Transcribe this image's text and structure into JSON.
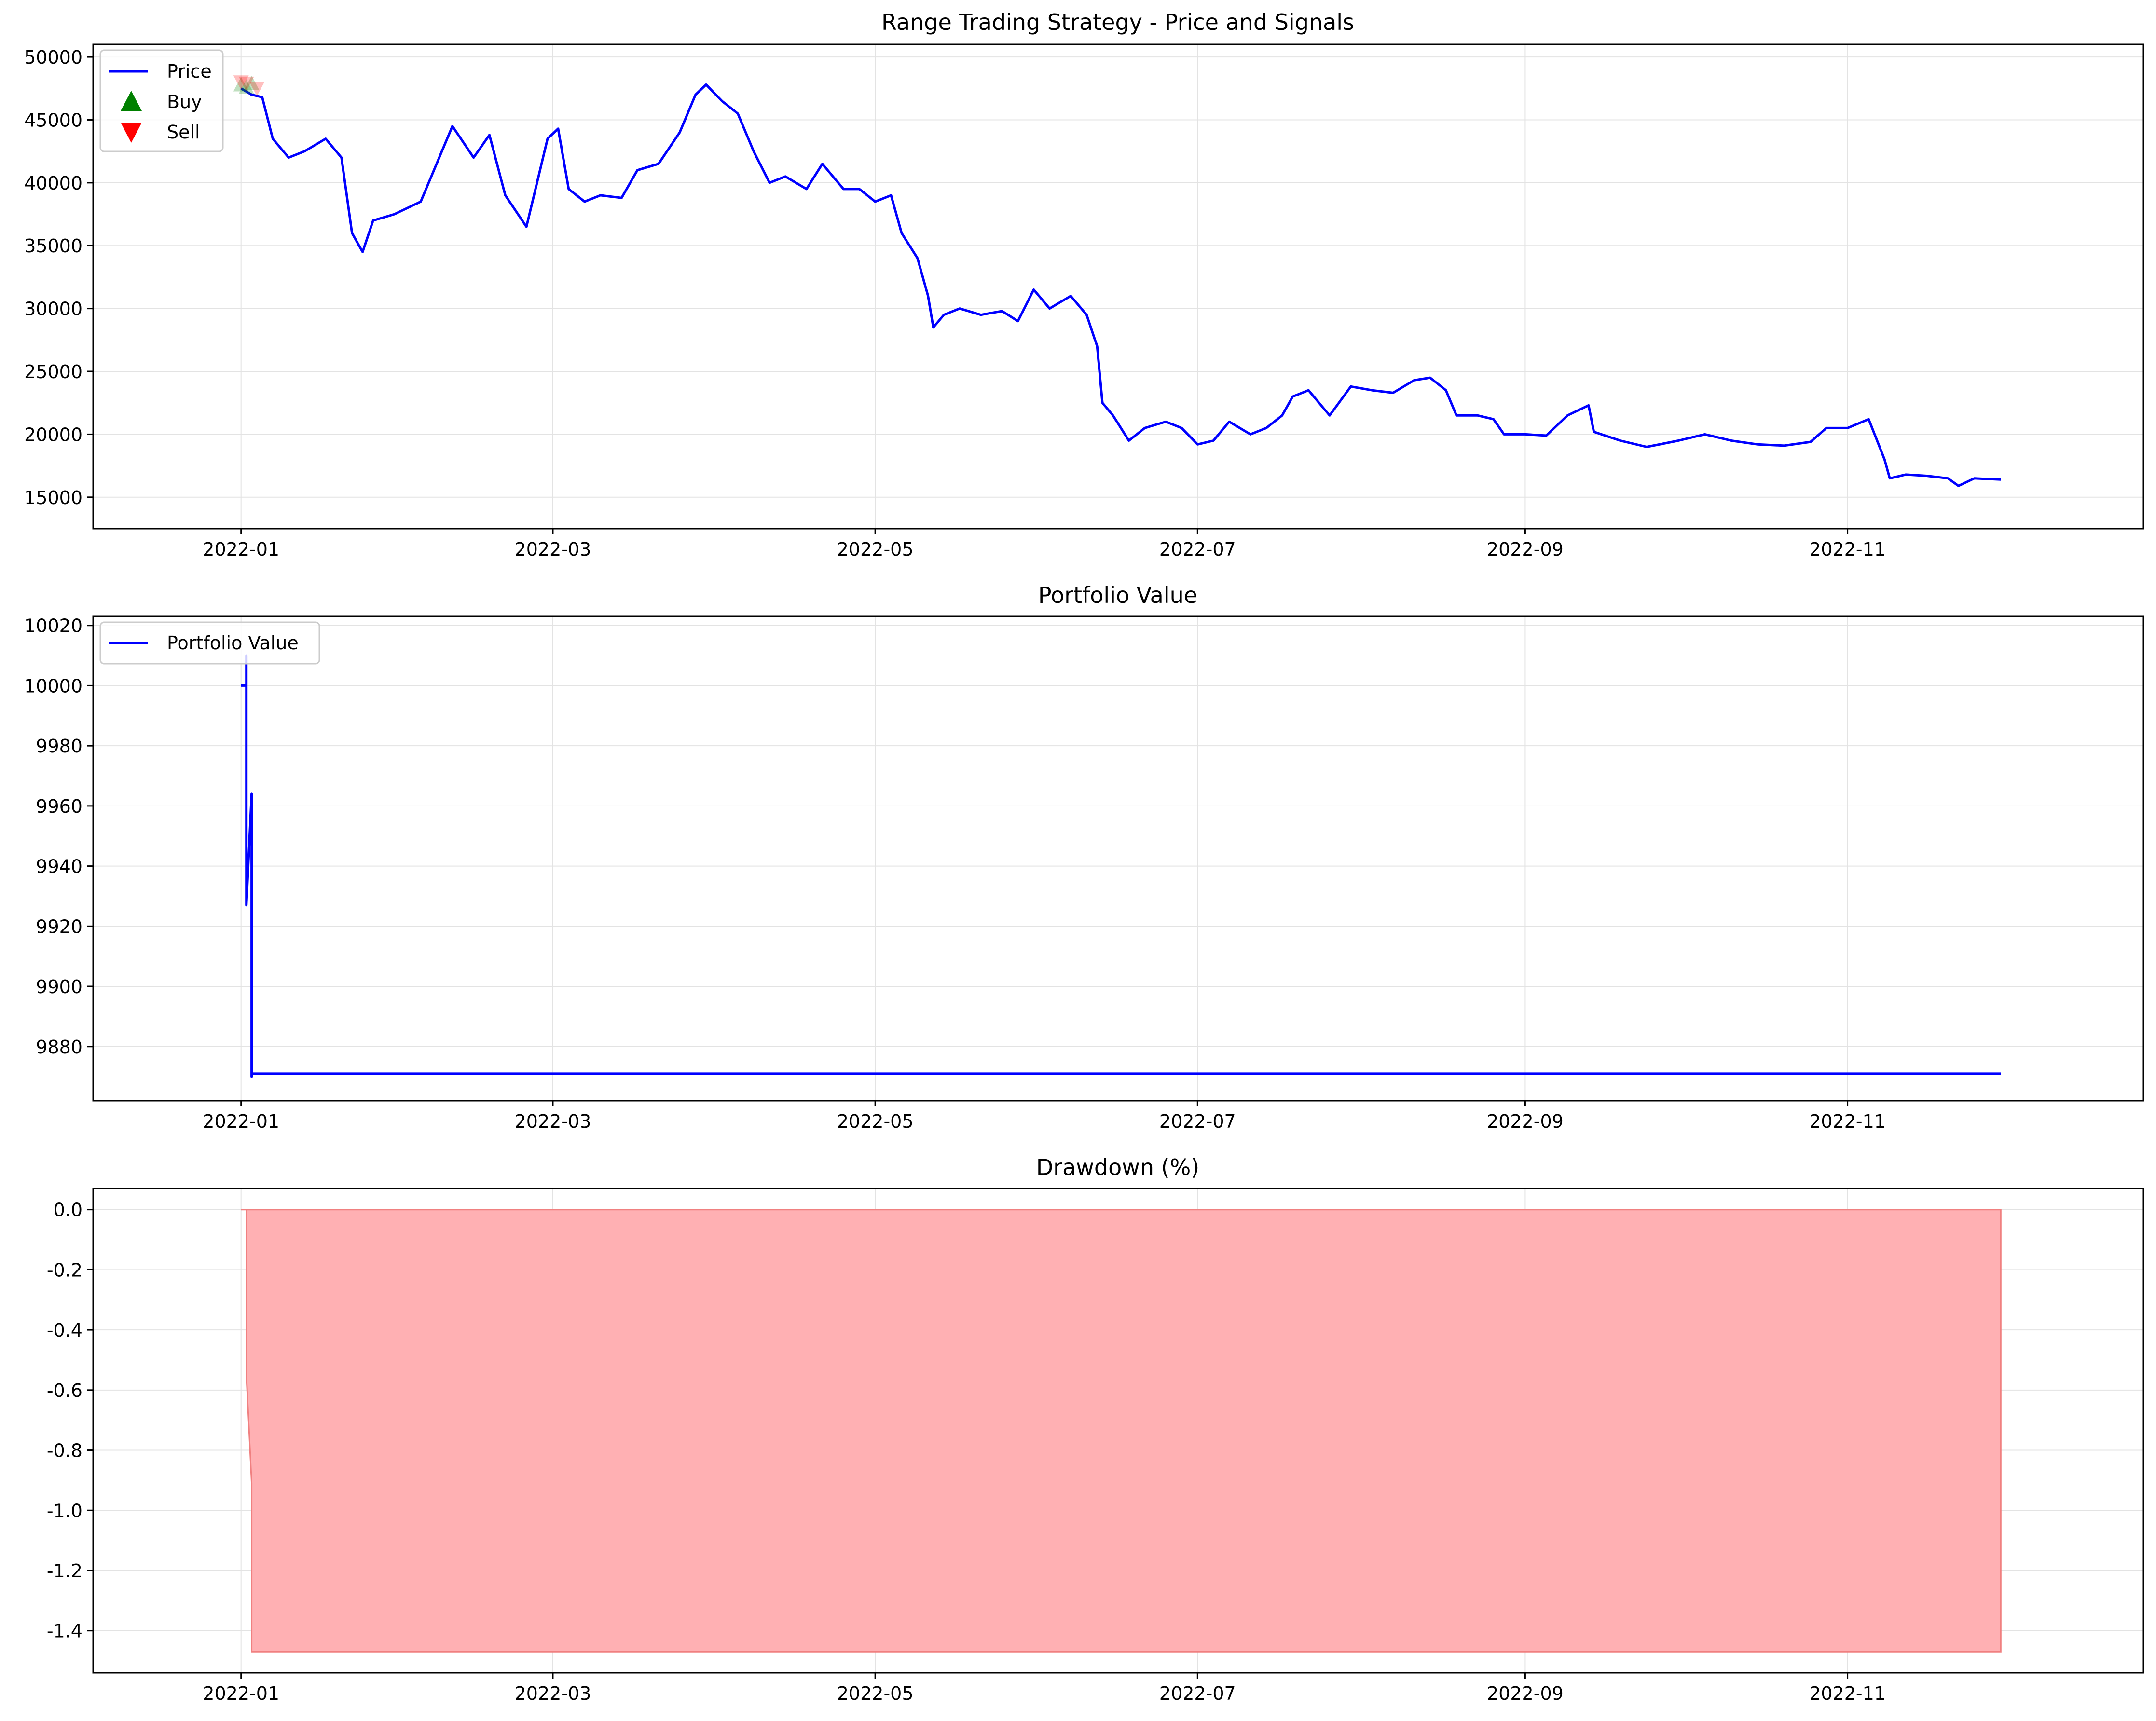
{
  "chart_data": [
    {
      "type": "line",
      "title": "Range Trading Strategy - Price and Signals",
      "xlabel": "",
      "ylabel": "",
      "x_tick_labels": [
        "2022-01",
        "2022-03",
        "2022-05",
        "2022-07",
        "2022-09",
        "2022-11"
      ],
      "y_tick_labels": [
        "15000",
        "20000",
        "25000",
        "30000",
        "35000",
        "40000",
        "45000",
        "50000"
      ],
      "ylim": [
        12500,
        51000
      ],
      "grid": true,
      "legend_position": "upper left",
      "legend": [
        "Price",
        "Buy",
        "Sell"
      ],
      "colors": {
        "price": "#0000ff",
        "buy": "#008000",
        "sell": "#ff0000"
      },
      "series": [
        {
          "name": "Price",
          "points": [
            [
              "2022-01-01",
              47500
            ],
            [
              "2022-01-03",
              47000
            ],
            [
              "2022-01-05",
              46800
            ],
            [
              "2022-01-07",
              43500
            ],
            [
              "2022-01-10",
              42000
            ],
            [
              "2022-01-13",
              42500
            ],
            [
              "2022-01-17",
              43500
            ],
            [
              "2022-01-20",
              42000
            ],
            [
              "2022-01-22",
              36000
            ],
            [
              "2022-01-24",
              34500
            ],
            [
              "2022-01-26",
              37000
            ],
            [
              "2022-01-30",
              37500
            ],
            [
              "2022-02-04",
              38500
            ],
            [
              "2022-02-07",
              41500
            ],
            [
              "2022-02-10",
              44500
            ],
            [
              "2022-02-14",
              42000
            ],
            [
              "2022-02-17",
              43800
            ],
            [
              "2022-02-20",
              39000
            ],
            [
              "2022-02-24",
              36500
            ],
            [
              "2022-02-28",
              43500
            ],
            [
              "2022-03-02",
              44300
            ],
            [
              "2022-03-04",
              39500
            ],
            [
              "2022-03-07",
              38500
            ],
            [
              "2022-03-10",
              39000
            ],
            [
              "2022-03-14",
              38800
            ],
            [
              "2022-03-17",
              41000
            ],
            [
              "2022-03-21",
              41500
            ],
            [
              "2022-03-25",
              44000
            ],
            [
              "2022-03-28",
              47000
            ],
            [
              "2022-03-30",
              47800
            ],
            [
              "2022-04-02",
              46500
            ],
            [
              "2022-04-05",
              45500
            ],
            [
              "2022-04-08",
              42500
            ],
            [
              "2022-04-11",
              40000
            ],
            [
              "2022-04-14",
              40500
            ],
            [
              "2022-04-18",
              39500
            ],
            [
              "2022-04-21",
              41500
            ],
            [
              "2022-04-25",
              39500
            ],
            [
              "2022-04-28",
              39500
            ],
            [
              "2022-05-01",
              38500
            ],
            [
              "2022-05-04",
              39000
            ],
            [
              "2022-05-06",
              36000
            ],
            [
              "2022-05-09",
              34000
            ],
            [
              "2022-05-11",
              31000
            ],
            [
              "2022-05-12",
              28500
            ],
            [
              "2022-05-14",
              29500
            ],
            [
              "2022-05-17",
              30000
            ],
            [
              "2022-05-21",
              29500
            ],
            [
              "2022-05-25",
              29800
            ],
            [
              "2022-05-28",
              29000
            ],
            [
              "2022-05-31",
              31500
            ],
            [
              "2022-06-03",
              30000
            ],
            [
              "2022-06-07",
              31000
            ],
            [
              "2022-06-10",
              29500
            ],
            [
              "2022-06-12",
              27000
            ],
            [
              "2022-06-13",
              22500
            ],
            [
              "2022-06-15",
              21500
            ],
            [
              "2022-06-18",
              19500
            ],
            [
              "2022-06-21",
              20500
            ],
            [
              "2022-06-25",
              21000
            ],
            [
              "2022-06-28",
              20500
            ],
            [
              "2022-07-01",
              19200
            ],
            [
              "2022-07-04",
              19500
            ],
            [
              "2022-07-07",
              21000
            ],
            [
              "2022-07-11",
              20000
            ],
            [
              "2022-07-14",
              20500
            ],
            [
              "2022-07-17",
              21500
            ],
            [
              "2022-07-19",
              23000
            ],
            [
              "2022-07-22",
              23500
            ],
            [
              "2022-07-26",
              21500
            ],
            [
              "2022-07-30",
              23800
            ],
            [
              "2022-08-03",
              23500
            ],
            [
              "2022-08-07",
              23300
            ],
            [
              "2022-08-11",
              24300
            ],
            [
              "2022-08-14",
              24500
            ],
            [
              "2022-08-17",
              23500
            ],
            [
              "2022-08-19",
              21500
            ],
            [
              "2022-08-23",
              21500
            ],
            [
              "2022-08-26",
              21200
            ],
            [
              "2022-08-28",
              20000
            ],
            [
              "2022-09-01",
              20000
            ],
            [
              "2022-09-05",
              19900
            ],
            [
              "2022-09-09",
              21500
            ],
            [
              "2022-09-13",
              22300
            ],
            [
              "2022-09-14",
              20200
            ],
            [
              "2022-09-19",
              19500
            ],
            [
              "2022-09-24",
              19000
            ],
            [
              "2022-09-30",
              19500
            ],
            [
              "2022-10-05",
              20000
            ],
            [
              "2022-10-10",
              19500
            ],
            [
              "2022-10-15",
              19200
            ],
            [
              "2022-10-20",
              19100
            ],
            [
              "2022-10-25",
              19400
            ],
            [
              "2022-10-28",
              20500
            ],
            [
              "2022-11-01",
              20500
            ],
            [
              "2022-11-05",
              21200
            ],
            [
              "2022-11-08",
              18000
            ],
            [
              "2022-11-09",
              16500
            ],
            [
              "2022-11-12",
              16800
            ],
            [
              "2022-11-16",
              16700
            ],
            [
              "2022-11-20",
              16500
            ],
            [
              "2022-11-22",
              15900
            ],
            [
              "2022-11-25",
              16500
            ],
            [
              "2022-11-30",
              16400
            ]
          ]
        },
        {
          "name": "Buy",
          "marker": "triangle-up",
          "points": [
            [
              "2022-01-01",
              47800
            ],
            [
              "2022-01-02",
              47600
            ],
            [
              "2022-01-03",
              47900
            ]
          ]
        },
        {
          "name": "Sell",
          "marker": "triangle-down",
          "points": [
            [
              "2022-01-01",
              48000
            ],
            [
              "2022-01-02",
              47900
            ],
            [
              "2022-01-04",
              47500
            ]
          ]
        }
      ]
    },
    {
      "type": "line",
      "title": "Portfolio Value",
      "xlabel": "",
      "ylabel": "",
      "x_tick_labels": [
        "2022-01",
        "2022-03",
        "2022-05",
        "2022-07",
        "2022-09",
        "2022-11"
      ],
      "y_tick_labels": [
        "9880",
        "9900",
        "9920",
        "9940",
        "9960",
        "9980",
        "10000",
        "10020"
      ],
      "ylim": [
        9862,
        10023
      ],
      "grid": true,
      "legend_position": "upper left",
      "legend": [
        "Portfolio Value"
      ],
      "colors": {
        "line": "#0000ff"
      },
      "series": [
        {
          "name": "Portfolio Value",
          "points": [
            [
              "2022-01-01",
              10000
            ],
            [
              "2022-01-01",
              10000
            ],
            [
              "2022-01-02",
              10000
            ],
            [
              "2022-01-02",
              9990
            ],
            [
              "2022-01-02",
              10010
            ],
            [
              "2022-01-02",
              9955
            ],
            [
              "2022-01-02",
              9927
            ],
            [
              "2022-01-03",
              9964
            ],
            [
              "2022-01-03",
              9925
            ],
            [
              "2022-01-03",
              9870
            ],
            [
              "2022-01-03",
              9871
            ],
            [
              "2022-11-30",
              9871
            ]
          ]
        }
      ]
    },
    {
      "type": "area",
      "title": "Drawdown (%)",
      "xlabel": "",
      "ylabel": "",
      "x_tick_labels": [
        "2022-01",
        "2022-03",
        "2022-05",
        "2022-07",
        "2022-09",
        "2022-11"
      ],
      "y_tick_labels": [
        "-1.4",
        "-1.2",
        "-1.0",
        "-0.8",
        "-0.6",
        "-0.4",
        "-0.2",
        "0.0"
      ],
      "ylim": [
        -1.54,
        0.07
      ],
      "grid": true,
      "colors": {
        "fill": "#ffb0b3",
        "edge": "#f08080"
      },
      "series": [
        {
          "name": "Drawdown",
          "points": [
            [
              "2022-01-01",
              0.0
            ],
            [
              "2022-01-02",
              0.0
            ],
            [
              "2022-01-02",
              -0.55
            ],
            [
              "2022-01-03",
              -0.91
            ],
            [
              "2022-01-03",
              -1.47
            ],
            [
              "2022-11-30",
              -1.47
            ]
          ]
        }
      ]
    }
  ]
}
